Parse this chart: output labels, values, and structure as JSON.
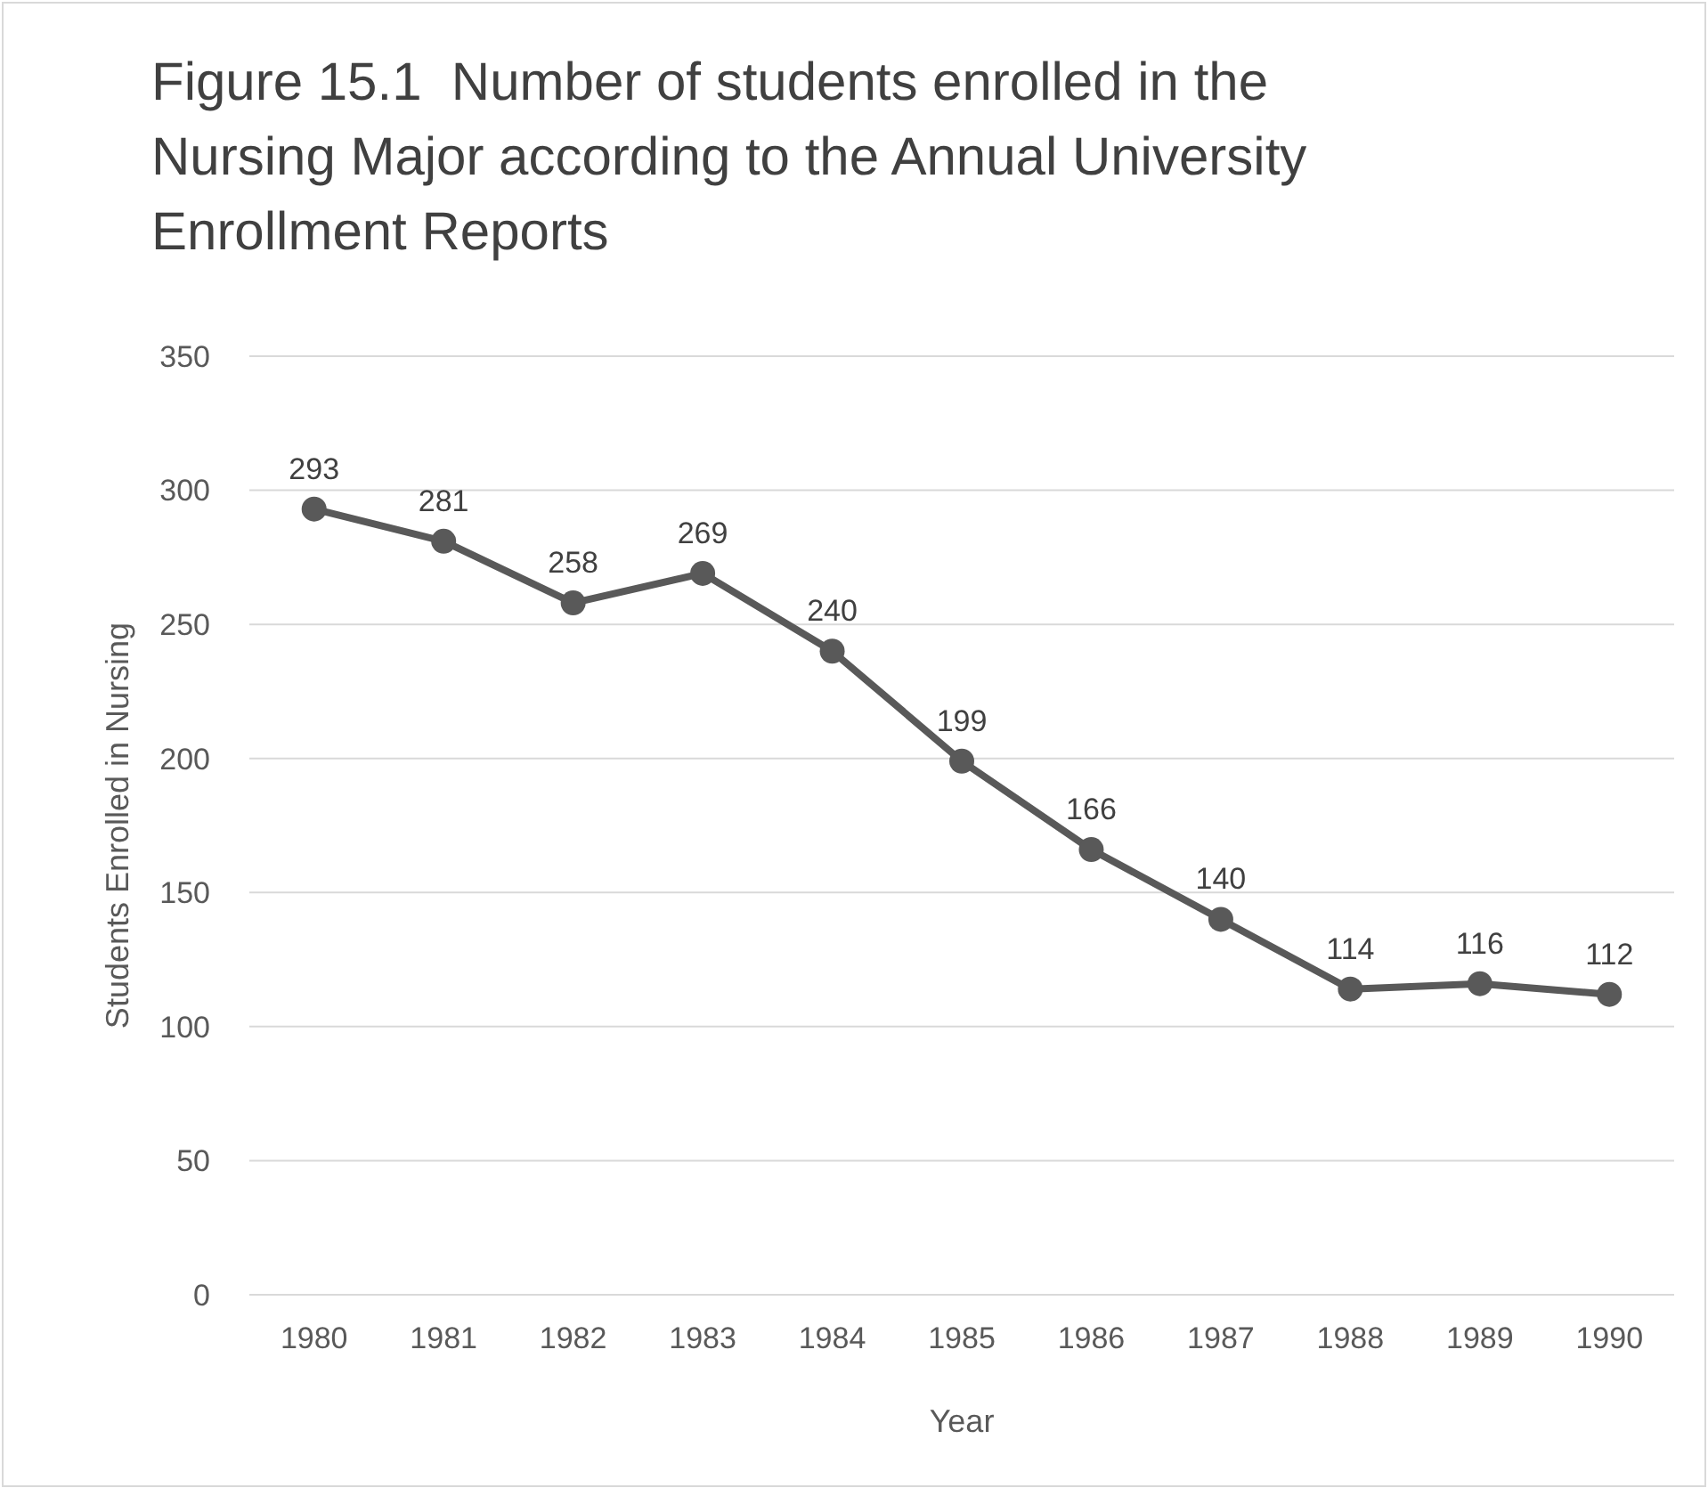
{
  "chart_data": {
    "type": "line",
    "title": "Figure 15.1  Number of students enrolled in the Nursing Major according to the Annual University Enrollment Reports",
    "xlabel": "Year",
    "ylabel": "Students Enrolled in Nursing",
    "categories": [
      "1980",
      "1981",
      "1982",
      "1983",
      "1984",
      "1985",
      "1986",
      "1987",
      "1988",
      "1989",
      "1990"
    ],
    "series": [
      {
        "color": "#595959",
        "values": [
          293,
          281,
          258,
          269,
          240,
          199,
          166,
          140,
          114,
          116,
          112
        ]
      }
    ],
    "ylim": [
      0,
      350
    ],
    "yticks": [
      0,
      50,
      100,
      150,
      200,
      250,
      300,
      350
    ],
    "grid": "y",
    "marker": "circle",
    "line_style": "solid",
    "data_labels": true
  }
}
